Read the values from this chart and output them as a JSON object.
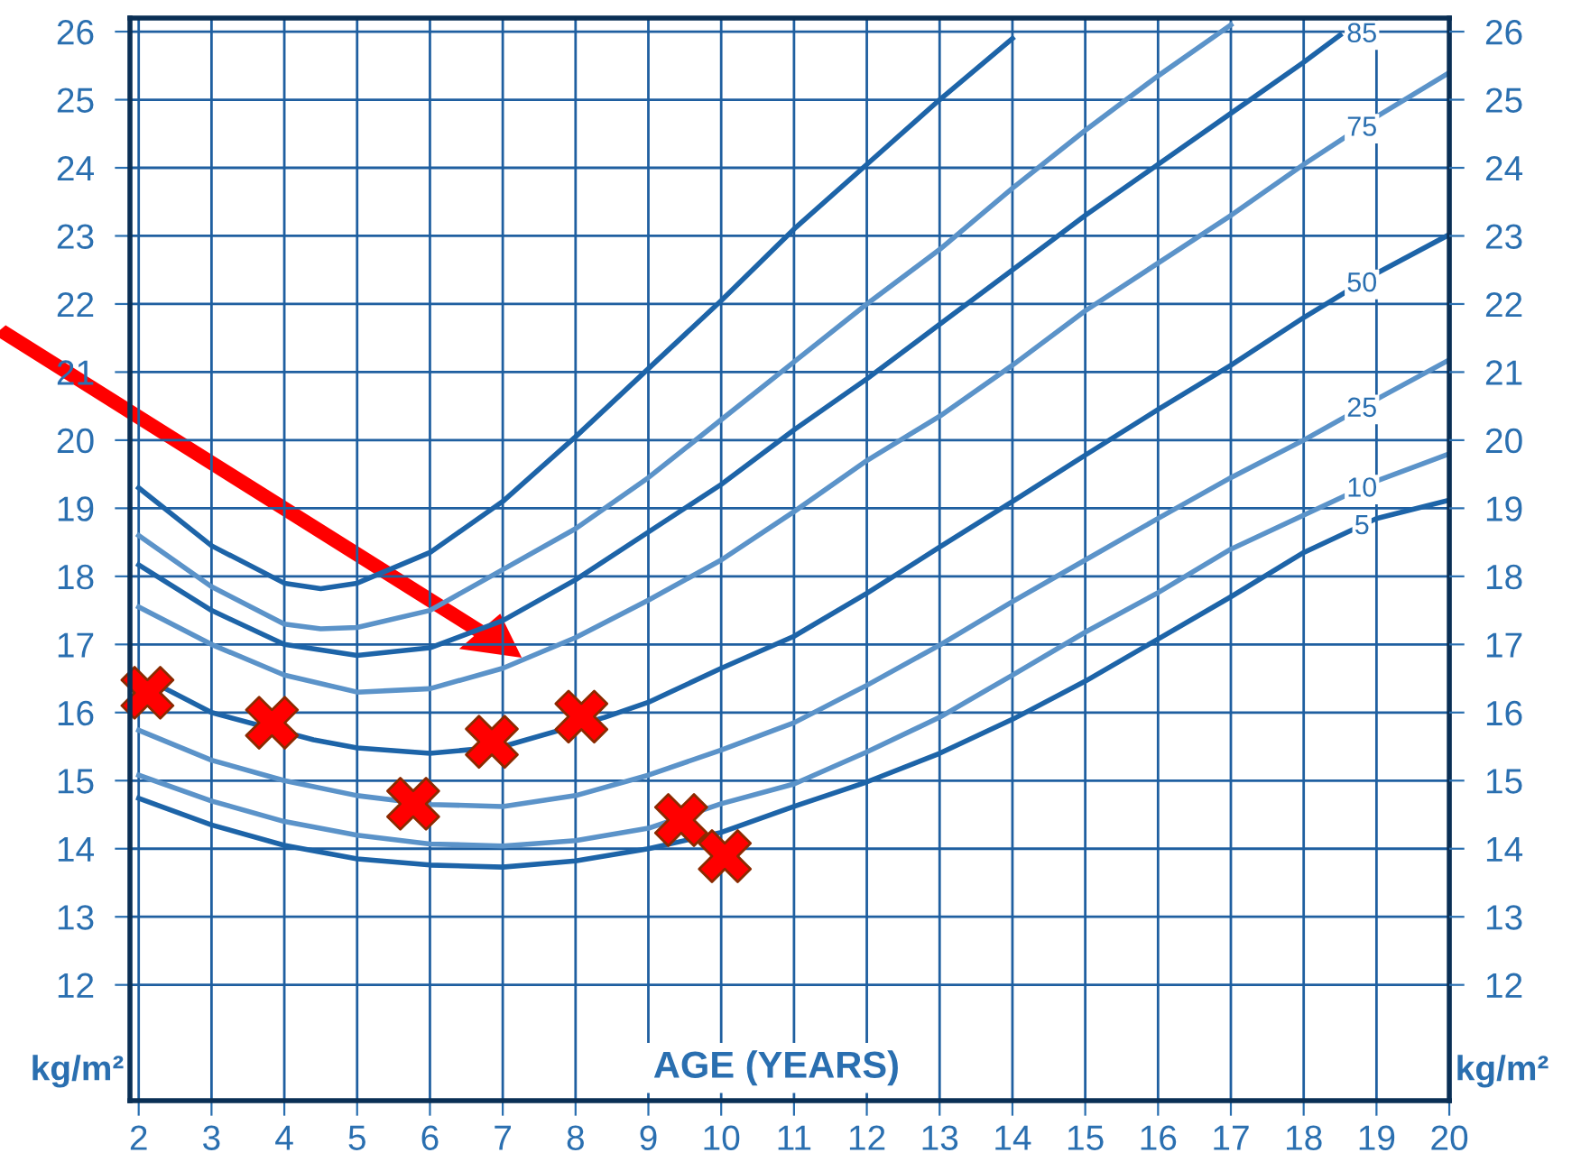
{
  "chart_data": {
    "type": "line",
    "xlabel": "AGE (YEARS)",
    "annotations": [
      "kg/m²",
      "kg/m²"
    ],
    "xlim": [
      1.88,
      20
    ],
    "ylim": [
      10.3,
      26.2
    ],
    "xticks": [
      2,
      3,
      4,
      5,
      6,
      7,
      8,
      9,
      10,
      11,
      12,
      13,
      14,
      15,
      16,
      17,
      18,
      19,
      20
    ],
    "yticks": [
      12,
      13,
      14,
      15,
      16,
      17,
      18,
      19,
      20,
      21,
      22,
      23,
      24,
      25,
      26
    ],
    "y2lim": [
      10.3,
      26.2
    ],
    "y2ticks": [
      12,
      13,
      14,
      15,
      16,
      17,
      18,
      19,
      20,
      21,
      22,
      23,
      24,
      25,
      26
    ],
    "grid": true,
    "line_style": "solid",
    "marker": "none",
    "series": [
      {
        "color": "#1d64a8",
        "x": [
          2,
          3,
          4,
          4.5,
          5,
          6,
          7,
          8,
          9,
          10,
          11,
          12,
          13,
          14
        ],
        "values": [
          19.3,
          18.45,
          17.9,
          17.82,
          17.9,
          18.35,
          19.1,
          20.05,
          21.05,
          22.05,
          23.1,
          24.05,
          25.0,
          25.9
        ]
      },
      {
        "color": "#5b93c9",
        "x": [
          2,
          3,
          4,
          4.5,
          5,
          6,
          7,
          8,
          9,
          10,
          11,
          12,
          13,
          14,
          15,
          16,
          17
        ],
        "values": [
          18.6,
          17.85,
          17.3,
          17.23,
          17.25,
          17.5,
          18.1,
          18.7,
          19.45,
          20.3,
          21.15,
          22.0,
          22.8,
          23.7,
          24.55,
          25.35,
          26.1
        ]
      },
      {
        "name": "85",
        "color": "#1d64a8",
        "x": [
          2,
          3,
          4,
          5,
          6,
          7,
          8,
          9,
          10,
          11,
          12,
          13,
          14,
          15,
          16,
          17,
          18,
          18.5
        ],
        "values": [
          18.17,
          17.5,
          17.0,
          16.84,
          16.95,
          17.35,
          17.95,
          18.65,
          19.35,
          20.15,
          20.9,
          21.7,
          22.5,
          23.3,
          24.05,
          24.8,
          25.55,
          25.95
        ]
      },
      {
        "name": "75",
        "color": "#5b93c9",
        "x": [
          2,
          3,
          4,
          5,
          6,
          7,
          8,
          9,
          10,
          11,
          12,
          13,
          14,
          15,
          16,
          17,
          18,
          19,
          20
        ],
        "values": [
          17.55,
          17.0,
          16.55,
          16.3,
          16.35,
          16.65,
          17.1,
          17.65,
          18.24,
          18.95,
          19.7,
          20.35,
          21.1,
          21.9,
          22.6,
          23.3,
          24.05,
          24.75,
          25.4
        ]
      },
      {
        "name": "50",
        "color": "#1d64a8",
        "x": [
          2.35,
          3,
          4.4,
          5,
          6,
          7,
          8.4,
          9,
          10,
          11,
          12,
          13,
          14,
          15,
          16,
          17,
          18,
          19,
          20
        ],
        "values": [
          16.36,
          16.0,
          15.6,
          15.48,
          15.4,
          15.5,
          15.93,
          16.15,
          16.65,
          17.12,
          17.75,
          18.43,
          19.1,
          19.78,
          20.45,
          21.1,
          21.8,
          22.45,
          23.02
        ]
      },
      {
        "name": "25",
        "color": "#5b93c9",
        "x": [
          2,
          3,
          4,
          5,
          6,
          7,
          8,
          9,
          10,
          11,
          12,
          13,
          14,
          15,
          16,
          17,
          18,
          19,
          20
        ],
        "values": [
          15.74,
          15.3,
          15.0,
          14.78,
          14.65,
          14.62,
          14.78,
          15.08,
          15.45,
          15.85,
          16.4,
          16.99,
          17.63,
          18.24,
          18.85,
          19.45,
          20.0,
          20.6,
          21.18
        ]
      },
      {
        "name": "10",
        "color": "#5b93c9",
        "x": [
          2,
          3,
          4,
          5,
          6,
          7,
          8,
          9,
          10,
          11,
          12,
          13,
          14,
          15,
          16,
          17,
          18,
          19,
          20
        ],
        "values": [
          15.08,
          14.7,
          14.4,
          14.2,
          14.07,
          14.04,
          14.12,
          14.3,
          14.66,
          14.95,
          15.42,
          15.93,
          16.55,
          17.18,
          17.76,
          18.4,
          18.9,
          19.4,
          19.8
        ]
      },
      {
        "name": "5",
        "color": "#1d64a8",
        "x": [
          2,
          3,
          4,
          5,
          6,
          7,
          8,
          9,
          10,
          11,
          12,
          13,
          14,
          15,
          16,
          17,
          18,
          19,
          20
        ],
        "values": [
          14.74,
          14.35,
          14.05,
          13.85,
          13.76,
          13.73,
          13.82,
          14.0,
          14.24,
          14.62,
          14.98,
          15.4,
          15.9,
          16.46,
          17.08,
          17.7,
          18.35,
          18.85,
          19.12
        ]
      },
      {
        "type": "scatter",
        "marker": "cross",
        "color": "#ff0000",
        "x": [
          2.12,
          3.83,
          5.77,
          6.85,
          8.08,
          9.45,
          10.05
        ],
        "values": [
          16.29,
          15.85,
          14.66,
          15.57,
          15.94,
          14.42,
          13.89
        ]
      }
    ]
  }
}
